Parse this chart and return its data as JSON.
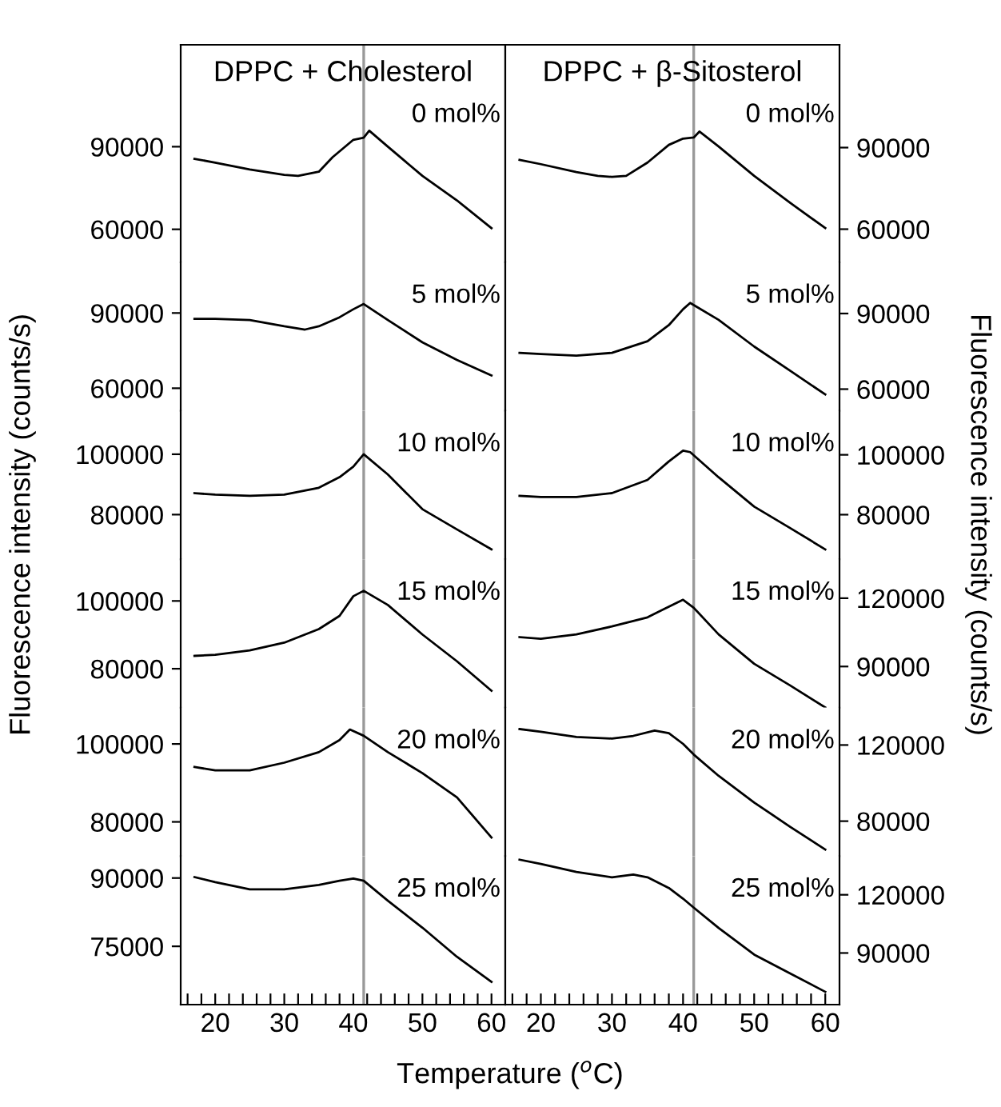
{
  "chart_data": [
    {
      "type": "line",
      "title": "DPPC + Cholesterol",
      "ylabel": "Fluorescence intensity (counts/s)",
      "annotations": [
        "0 mol%"
      ],
      "xlim": [
        15,
        62
      ],
      "ylim": [
        48000,
        127000
      ],
      "yticks": [
        60000,
        90000
      ],
      "tick_labels": "y",
      "ref_lines": [
        {
          "axis": "x",
          "value": 41.5,
          "color": "#999999"
        }
      ],
      "series": [
        {
          "color": "#000000",
          "x": [
            17,
            20,
            25,
            30,
            32,
            35,
            37,
            40,
            41.5,
            42.3,
            45,
            50,
            55,
            60
          ],
          "values": [
            85600,
            84200,
            81700,
            79800,
            79400,
            80900,
            86200,
            92500,
            93300,
            95800,
            90000,
            79400,
            70500,
            60400
          ]
        }
      ]
    },
    {
      "type": "line",
      "annotations": [
        "5 mol%"
      ],
      "xlim": [
        15,
        62
      ],
      "ylim": [
        51000,
        110200
      ],
      "yticks": [
        60000,
        90000
      ],
      "tick_labels": "y",
      "ref_lines": [
        {
          "axis": "x",
          "value": 41.5,
          "color": "#999999"
        }
      ],
      "series": [
        {
          "color": "#000000",
          "x": [
            17,
            20,
            25,
            30,
            33,
            35,
            38,
            40,
            41.5,
            45,
            50,
            55,
            60
          ],
          "values": [
            87700,
            87700,
            87200,
            84700,
            83400,
            84700,
            88300,
            91500,
            93600,
            87200,
            78300,
            71300,
            65100
          ]
        }
      ]
    },
    {
      "type": "line",
      "annotations": [
        "10 mol%"
      ],
      "xlim": [
        15,
        62
      ],
      "ylim": [
        65200,
        114400
      ],
      "yticks": [
        80000,
        100000
      ],
      "tick_labels": "y",
      "ref_lines": [
        {
          "axis": "x",
          "value": 41.5,
          "color": "#999999"
        }
      ],
      "series": [
        {
          "color": "#000000",
          "x": [
            17,
            20,
            25,
            30,
            35,
            38,
            40,
            41.5,
            45,
            50,
            55,
            60
          ],
          "values": [
            87100,
            86600,
            86200,
            86600,
            88900,
            92400,
            95900,
            100000,
            93300,
            81800,
            75100,
            68500
          ]
        }
      ]
    },
    {
      "type": "line",
      "annotations": [
        "15 mol%"
      ],
      "xlim": [
        15,
        62
      ],
      "ylim": [
        68500,
        112300
      ],
      "yticks": [
        80000,
        100000
      ],
      "tick_labels": "y",
      "ref_lines": [
        {
          "axis": "x",
          "value": 41.5,
          "color": "#999999"
        }
      ],
      "series": [
        {
          "color": "#000000",
          "x": [
            17,
            20,
            25,
            30,
            35,
            38,
            40,
            41.5,
            45,
            50,
            55,
            60
          ],
          "values": [
            83800,
            84100,
            85400,
            87700,
            91700,
            95600,
            101400,
            103000,
            98800,
            90100,
            82200,
            73500
          ]
        }
      ]
    },
    {
      "type": "line",
      "annotations": [
        "20 mol%"
      ],
      "xlim": [
        15,
        62
      ],
      "ylim": [
        71200,
        109300
      ],
      "yticks": [
        80000,
        100000
      ],
      "tick_labels": "y",
      "ref_lines": [
        {
          "axis": "x",
          "value": 41.5,
          "color": "#999999"
        }
      ],
      "series": [
        {
          "color": "#000000",
          "x": [
            17,
            20,
            25,
            30,
            35,
            38,
            39.5,
            41.5,
            45,
            50,
            55,
            60
          ],
          "values": [
            94100,
            93200,
            93200,
            95200,
            97900,
            101000,
            103700,
            102100,
            97900,
            92500,
            86300,
            76000
          ]
        }
      ]
    },
    {
      "type": "line",
      "xlabel": "Temperature ($^{o}$C)",
      "annotations": [
        "25 mol%"
      ],
      "xlim": [
        15,
        62
      ],
      "ylim": [
        62200,
        94800
      ],
      "yticks": [
        75000,
        90000
      ],
      "xticks": [
        {
          "value": 16,
          "label": null
        },
        {
          "value": 18,
          "label": null
        },
        20,
        {
          "value": 22,
          "label": null
        },
        {
          "value": 24,
          "label": null
        },
        {
          "value": 26,
          "label": null
        },
        {
          "value": 28,
          "label": null
        },
        30,
        {
          "value": 32,
          "label": null
        },
        {
          "value": 34,
          "label": null
        },
        {
          "value": 36,
          "label": null
        },
        {
          "value": 38,
          "label": null
        },
        40,
        {
          "value": 42,
          "label": null
        },
        {
          "value": 44,
          "label": null
        },
        {
          "value": 46,
          "label": null
        },
        {
          "value": 48,
          "label": null
        },
        50,
        {
          "value": 52,
          "label": null
        },
        {
          "value": 54,
          "label": null
        },
        {
          "value": 56,
          "label": null
        },
        {
          "value": 58,
          "label": null
        },
        60
      ],
      "ref_lines": [
        {
          "axis": "x",
          "value": 41.5,
          "color": "#999999"
        }
      ],
      "series": [
        {
          "color": "#000000",
          "x": [
            17,
            20,
            25,
            30,
            35,
            38,
            40,
            41.5,
            45,
            50,
            55,
            60
          ],
          "values": [
            90200,
            89100,
            87500,
            87500,
            88500,
            89400,
            89900,
            89400,
            85000,
            79100,
            72700,
            67200
          ]
        }
      ]
    },
    {
      "type": "line",
      "title": "DPPC + β-Sitosterol",
      "y2label": "Fluorescence intensity (counts/s)",
      "annotations": [
        "0 mol%"
      ],
      "xlim": [
        15,
        62
      ],
      "y2lim": [
        47800,
        127800
      ],
      "y2ticks": [
        60000,
        90000
      ],
      "tick_labels": "y",
      "ref_lines": [
        {
          "axis": "x",
          "value": 41.5,
          "color": "#999999"
        }
      ],
      "series": [
        {
          "color": "#000000",
          "axis": "y2",
          "x": [
            17,
            20,
            25,
            28,
            30,
            32,
            35,
            38,
            40,
            41.5,
            42.3,
            45,
            50,
            55,
            60
          ],
          "values": [
            85500,
            83900,
            81000,
            79600,
            79200,
            79600,
            84500,
            91000,
            93300,
            93700,
            95900,
            90400,
            79600,
            69800,
            60400
          ]
        }
      ]
    },
    {
      "type": "line",
      "annotations": [
        "5 mol%"
      ],
      "xlim": [
        15,
        62
      ],
      "y2lim": [
        51400,
        110300
      ],
      "y2ticks": [
        60000,
        90000
      ],
      "tick_labels": "y",
      "ref_lines": [
        {
          "axis": "x",
          "value": 41.5,
          "color": "#999999"
        }
      ],
      "series": [
        {
          "color": "#000000",
          "axis": "y2",
          "x": [
            17,
            20,
            25,
            30,
            35,
            38,
            40,
            41,
            45,
            50,
            55,
            60
          ],
          "values": [
            74400,
            73900,
            73300,
            74400,
            79000,
            85400,
            91700,
            94200,
            87500,
            76900,
            67400,
            57900
          ]
        }
      ]
    },
    {
      "type": "line",
      "annotations": [
        "10 mol%"
      ],
      "xlim": [
        15,
        62
      ],
      "y2lim": [
        65100,
        114700
      ],
      "y2ticks": [
        80000,
        100000
      ],
      "tick_labels": "y",
      "ref_lines": [
        {
          "axis": "x",
          "value": 41.5,
          "color": "#999999"
        }
      ],
      "series": [
        {
          "color": "#000000",
          "axis": "y2",
          "x": [
            17,
            20,
            25,
            30,
            35,
            38,
            40,
            41,
            45,
            50,
            55,
            60
          ],
          "values": [
            86300,
            85900,
            85900,
            87200,
            91600,
            97800,
            101400,
            100900,
            92500,
            82700,
            75600,
            68400
          ]
        }
      ]
    },
    {
      "type": "line",
      "annotations": [
        "15 mol%"
      ],
      "xlim": [
        15,
        62
      ],
      "y2lim": [
        71900,
        137100
      ],
      "y2ticks": [
        90000,
        120000
      ],
      "tick_labels": "y",
      "ref_lines": [
        {
          "axis": "x",
          "value": 41.5,
          "color": "#999999"
        }
      ],
      "series": [
        {
          "color": "#000000",
          "axis": "y2",
          "x": [
            17,
            20,
            25,
            30,
            35,
            38,
            40,
            41.5,
            45,
            50,
            55,
            60
          ],
          "values": [
            102900,
            102200,
            104100,
            107600,
            111600,
            116300,
            119300,
            115800,
            104100,
            91200,
            81800,
            72000
          ]
        }
      ]
    },
    {
      "type": "line",
      "annotations": [
        "20 mol%"
      ],
      "xlim": [
        15,
        62
      ],
      "y2lim": [
        61600,
        139600
      ],
      "y2ticks": [
        80000,
        120000
      ],
      "tick_labels": "y",
      "ref_lines": [
        {
          "axis": "x",
          "value": 41.5,
          "color": "#999999"
        }
      ],
      "series": [
        {
          "color": "#000000",
          "axis": "y2",
          "x": [
            17,
            20,
            25,
            30,
            33,
            36,
            38,
            40,
            41.5,
            45,
            50,
            55,
            60
          ],
          "values": [
            128400,
            127000,
            124200,
            123400,
            124800,
            127600,
            126200,
            120600,
            115000,
            103800,
            89800,
            77200,
            65100
          ]
        }
      ]
    },
    {
      "type": "line",
      "annotations": [
        "25 mol%"
      ],
      "xlim": [
        15,
        62
      ],
      "y2lim": [
        63400,
        139900
      ],
      "y2ticks": [
        90000,
        120000
      ],
      "xticks": [
        {
          "value": 16,
          "label": null
        },
        {
          "value": 18,
          "label": null
        },
        20,
        {
          "value": 22,
          "label": null
        },
        {
          "value": 24,
          "label": null
        },
        {
          "value": 26,
          "label": null
        },
        {
          "value": 28,
          "label": null
        },
        30,
        {
          "value": 32,
          "label": null
        },
        {
          "value": 34,
          "label": null
        },
        {
          "value": 36,
          "label": null
        },
        {
          "value": 38,
          "label": null
        },
        40,
        {
          "value": 42,
          "label": null
        },
        {
          "value": 44,
          "label": null
        },
        {
          "value": 46,
          "label": null
        },
        {
          "value": 48,
          "label": null
        },
        50,
        {
          "value": 52,
          "label": null
        },
        {
          "value": 54,
          "label": null
        },
        {
          "value": 56,
          "label": null
        },
        {
          "value": 58,
          "label": null
        },
        60
      ],
      "ref_lines": [
        {
          "axis": "x",
          "value": 41.5,
          "color": "#999999"
        }
      ],
      "series": [
        {
          "color": "#000000",
          "axis": "y2",
          "x": [
            17,
            20,
            25,
            30,
            33,
            35,
            38,
            40,
            41.5,
            45,
            50,
            55,
            60
          ],
          "values": [
            138100,
            135900,
            131800,
            129000,
            130400,
            129000,
            123500,
            118000,
            113400,
            102900,
            89200,
            79600,
            70000
          ]
        }
      ]
    }
  ]
}
